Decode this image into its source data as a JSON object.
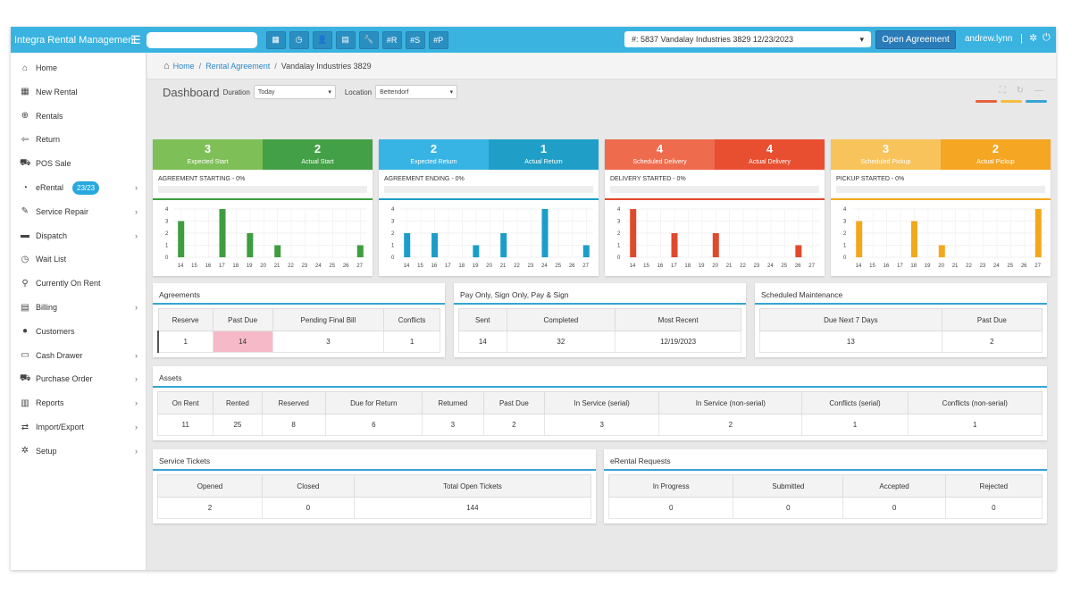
{
  "topbar": {
    "brand": "Integra Rental Management",
    "search_value": "",
    "tool_buttons": [
      "▦",
      "◷",
      "👤",
      "▤",
      "🔧",
      "#R",
      "#S",
      "#P"
    ],
    "agreement_select": "#: 5837 Vandalay Industries 3829 12/23/2023",
    "open_agreement_label": "Open Agreement",
    "user": "andrew.lynn",
    "separator": "|"
  },
  "sidebar": {
    "items": [
      {
        "label": "Home",
        "icon": "home-icon",
        "glyph": "⌂",
        "chevron": false
      },
      {
        "label": "New Rental",
        "icon": "calendar-icon",
        "glyph": "▦",
        "chevron": false
      },
      {
        "label": "Rentals",
        "icon": "rentals-icon",
        "glyph": "⊕",
        "chevron": false
      },
      {
        "label": "Return",
        "icon": "return-icon",
        "glyph": "⇦",
        "chevron": false
      },
      {
        "label": "POS Sale",
        "icon": "cart-icon",
        "glyph": "⛟",
        "chevron": false
      },
      {
        "label": "eRental",
        "icon": "erental-icon",
        "glyph": "◔",
        "chevron": true,
        "badge": "23/23"
      },
      {
        "label": "Service Repair",
        "icon": "wrench-icon",
        "glyph": "✎",
        "chevron": true
      },
      {
        "label": "Dispatch",
        "icon": "truck-icon",
        "glyph": "▬",
        "chevron": true
      },
      {
        "label": "Wait List",
        "icon": "clock-icon",
        "glyph": "◷",
        "chevron": false
      },
      {
        "label": "Currently On Rent",
        "icon": "map-pin-icon",
        "glyph": "⚲",
        "chevron": false
      },
      {
        "label": "Billing",
        "icon": "billing-icon",
        "glyph": "▤",
        "chevron": true
      },
      {
        "label": "Customers",
        "icon": "user-icon",
        "glyph": "●",
        "chevron": false
      },
      {
        "label": "Cash Drawer",
        "icon": "cash-drawer-icon",
        "glyph": "▭",
        "chevron": true
      },
      {
        "label": "Purchase Order",
        "icon": "purchase-order-icon",
        "glyph": "⛟",
        "chevron": true
      },
      {
        "label": "Reports",
        "icon": "reports-icon",
        "glyph": "▥",
        "chevron": true
      },
      {
        "label": "Import/Export",
        "icon": "import-export-icon",
        "glyph": "⇄",
        "chevron": true
      },
      {
        "label": "Setup",
        "icon": "gear-icon",
        "glyph": "✲",
        "chevron": true
      }
    ]
  },
  "breadcrumb": {
    "home": "Home",
    "rental_agreement": "Rental Agreement",
    "current": "Vandalay Industries 3829",
    "sep": "/"
  },
  "dashbar": {
    "title": "Dashboard",
    "duration_label": "Duration",
    "duration_value": "Today",
    "location_label": "Location",
    "location_value": "Bettendorf",
    "theme_colors": [
      "#e8603c",
      "#f5bd3e",
      "#36a4d4"
    ]
  },
  "kpi_cards": [
    {
      "left_num": "3",
      "left_label": "Expected Start",
      "right_num": "2",
      "right_label": "Actual Start",
      "left_color": "#7ebf57",
      "right_color": "#43a047",
      "bar_color": "#3e9d3e",
      "status": "AGREEMENT STARTING - 0%",
      "progress": 0
    },
    {
      "left_num": "2",
      "left_label": "Expected Return",
      "right_num": "1",
      "right_label": "Actual Return",
      "left_color": "#38b4e4",
      "right_color": "#1f9fc8",
      "bar_color": "#1b9dc9",
      "status": "AGREEMENT ENDING - 0%",
      "progress": 0
    },
    {
      "left_num": "4",
      "left_label": "Scheduled Delivery",
      "right_num": "4",
      "right_label": "Actual Delivery",
      "left_color": "#ee6b4d",
      "right_color": "#e84f30",
      "bar_color": "#e04a2c",
      "status": "DELIVERY STARTED - 0%",
      "progress": 0
    },
    {
      "left_num": "3",
      "left_label": "Scheduled Pickup",
      "right_num": "2",
      "right_label": "Actual Pickup",
      "left_color": "#f7c35a",
      "right_color": "#f5a623",
      "bar_color": "#f2a81d",
      "status": "PICKUP STARTED - 0%",
      "progress": 0
    }
  ],
  "chart_data": [
    {
      "type": "bar",
      "categories": [
        "14",
        "15",
        "16",
        "17",
        "18",
        "19",
        "20",
        "21",
        "22",
        "23",
        "24",
        "25",
        "26",
        "27"
      ],
      "values": [
        3,
        0,
        0,
        4,
        0,
        2,
        0,
        1,
        0,
        0,
        0,
        0,
        0,
        1
      ],
      "ylim": [
        0,
        4
      ],
      "yticks": [
        "0",
        "1",
        "2",
        "3",
        "4"
      ]
    },
    {
      "type": "bar",
      "categories": [
        "14",
        "15",
        "16",
        "17",
        "18",
        "19",
        "20",
        "21",
        "22",
        "23",
        "24",
        "25",
        "26",
        "27"
      ],
      "values": [
        2,
        0,
        2,
        0,
        0,
        1,
        0,
        2,
        0,
        0,
        4,
        0,
        0,
        1
      ],
      "ylim": [
        0,
        4
      ],
      "yticks": [
        "0",
        "1",
        "2",
        "3",
        "4"
      ]
    },
    {
      "type": "bar",
      "categories": [
        "14",
        "15",
        "16",
        "17",
        "18",
        "19",
        "20",
        "21",
        "22",
        "23",
        "24",
        "25",
        "26",
        "27"
      ],
      "values": [
        4,
        0,
        0,
        2,
        0,
        0,
        2,
        0,
        0,
        0,
        0,
        0,
        1,
        0
      ],
      "ylim": [
        0,
        4
      ],
      "yticks": [
        "0",
        "1",
        "2",
        "3",
        "4"
      ]
    },
    {
      "type": "bar",
      "categories": [
        "14",
        "15",
        "16",
        "17",
        "18",
        "19",
        "20",
        "21",
        "22",
        "23",
        "24",
        "25",
        "26",
        "27"
      ],
      "values": [
        3,
        0,
        0,
        0,
        3,
        0,
        1,
        0,
        0,
        0,
        0,
        0,
        0,
        4
      ],
      "ylim": [
        0,
        4
      ],
      "yticks": [
        "0",
        "1",
        "2",
        "3",
        "4"
      ]
    }
  ],
  "agreements": {
    "title": "Agreements",
    "headers": [
      "Reserve",
      "Past Due",
      "Pending Final Bill",
      "Conflicts"
    ],
    "values": [
      "1",
      "14",
      "3",
      "1"
    ]
  },
  "pay_only": {
    "title": "Pay Only, Sign Only, Pay & Sign",
    "headers": [
      "Sent",
      "Completed",
      "Most Recent"
    ],
    "values": [
      "14",
      "32",
      "12/19/2023"
    ]
  },
  "maintenance": {
    "title": "Scheduled Maintenance",
    "headers": [
      "Due Next 7 Days",
      "Past Due"
    ],
    "values": [
      "13",
      "2"
    ]
  },
  "assets": {
    "title": "Assets",
    "headers": [
      "On Rent",
      "Rented",
      "Reserved",
      "Due for Return",
      "Returned",
      "Past Due",
      "In Service (serial)",
      "In Service (non-serial)",
      "Conflicts (serial)",
      "Conflicts (non-serial)"
    ],
    "values": [
      "11",
      "25",
      "8",
      "6",
      "3",
      "2",
      "3",
      "2",
      "1",
      "1"
    ]
  },
  "service_tickets": {
    "title": "Service Tickets",
    "headers": [
      "Opened",
      "Closed",
      "Total Open Tickets"
    ],
    "values": [
      "2",
      "0",
      "144"
    ]
  },
  "erental_requests": {
    "title": "eRental Requests",
    "headers": [
      "In Progress",
      "Submitted",
      "Accepted",
      "Rejected"
    ],
    "values": [
      "0",
      "0",
      "0",
      "0"
    ]
  }
}
